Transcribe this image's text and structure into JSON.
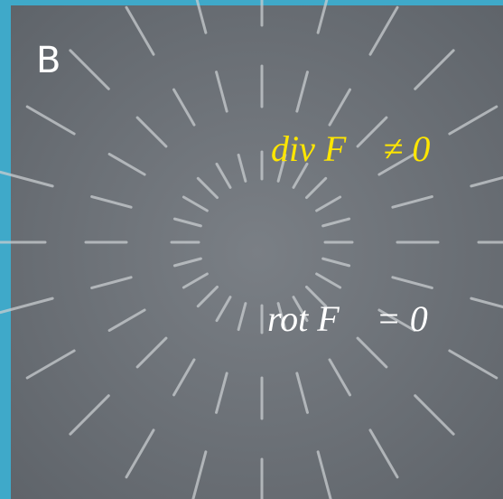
{
  "panel_label": "B",
  "equations": {
    "divergence": "div F⃗ ≠ 0",
    "rotation": "rot F⃗ = 0"
  }
}
